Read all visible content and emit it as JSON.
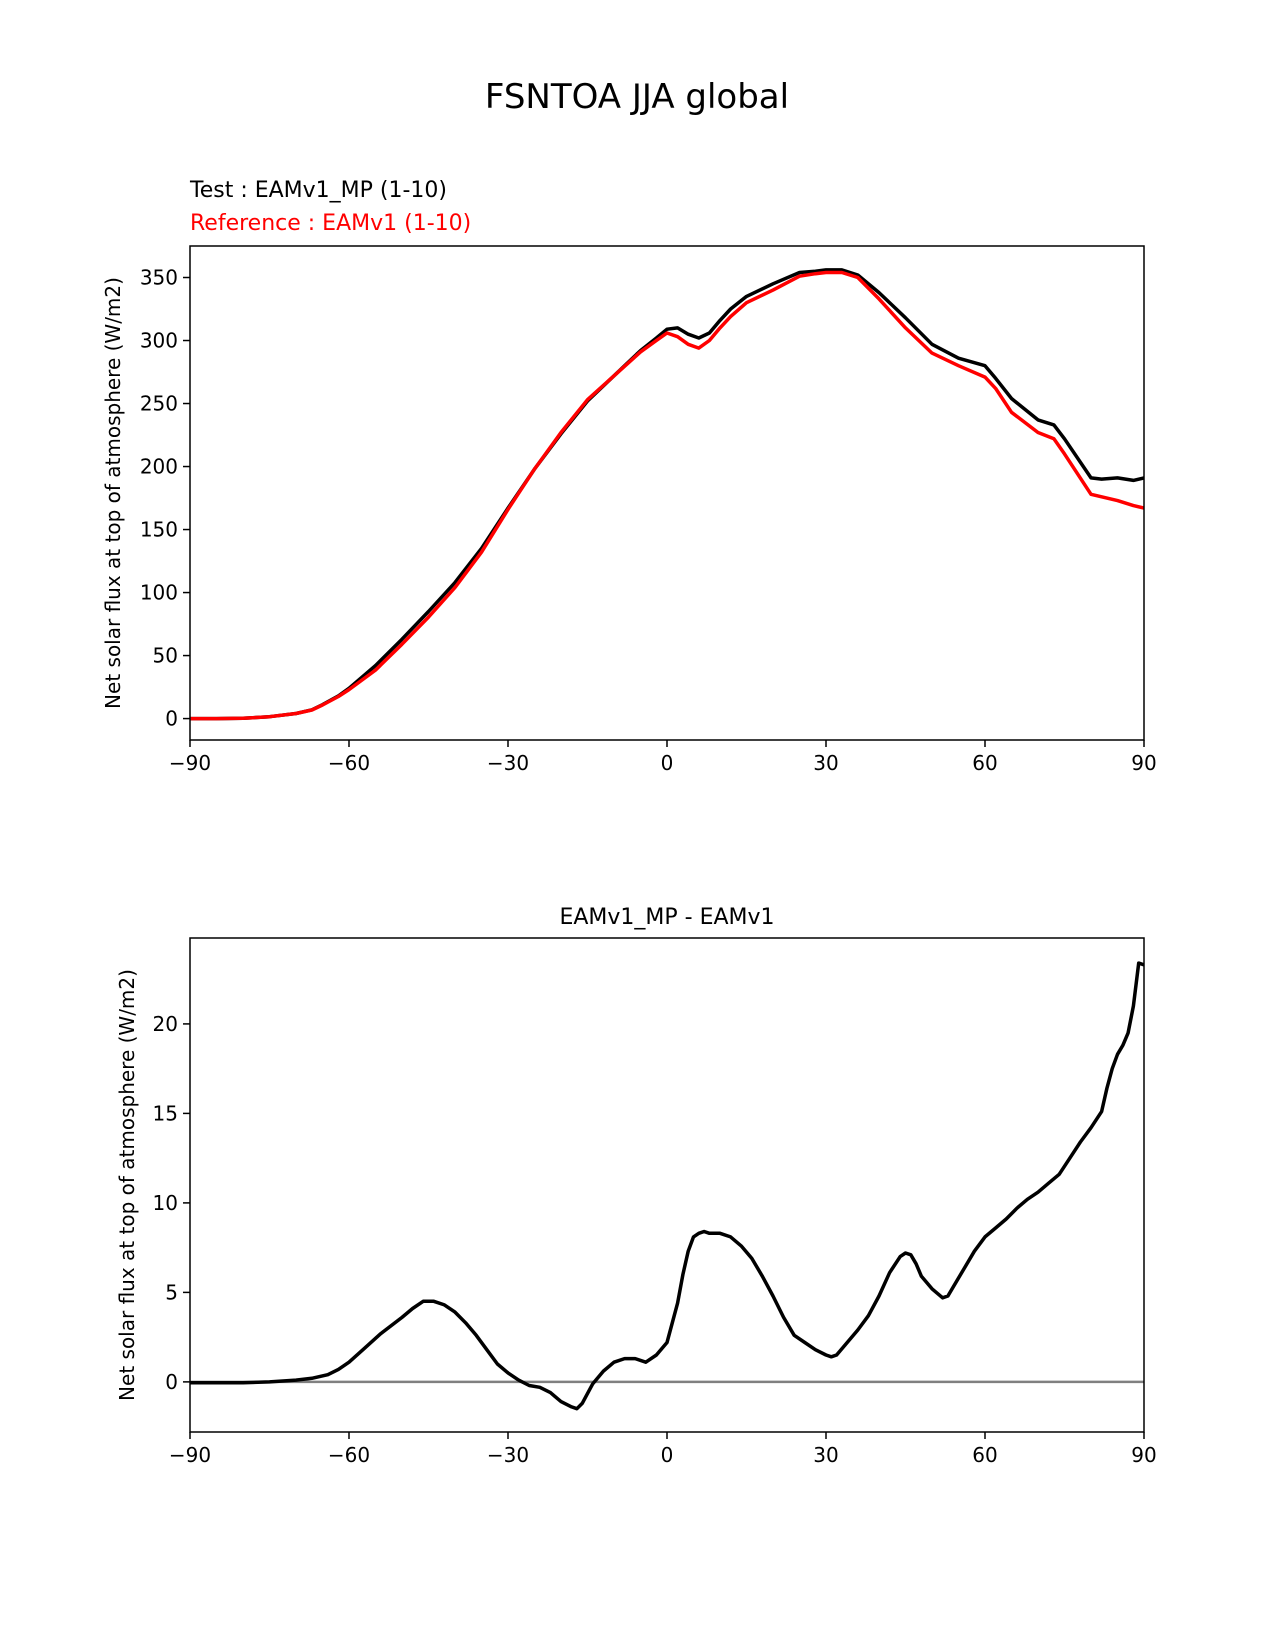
{
  "figure": {
    "title": "FSNTOA JJA global"
  },
  "chart_data": [
    {
      "type": "line",
      "title_test": "Test : EAMv1_MP (1-10)",
      "title_ref": "Reference : EAMv1 (1-10)",
      "xlabel": "",
      "ylabel": "Net solar flux at top of atmosphere (W/m2)",
      "xlim": [
        -90,
        90
      ],
      "ylim": [
        -17,
        375
      ],
      "xticks": [
        -90,
        -60,
        -30,
        0,
        30,
        60,
        90
      ],
      "xtick_labels": [
        "−90",
        "−60",
        "−30",
        "0",
        "30",
        "60",
        "90"
      ],
      "yticks": [
        0,
        50,
        100,
        150,
        200,
        250,
        300,
        350
      ],
      "ytick_labels": [
        "0",
        "50",
        "100",
        "150",
        "200",
        "250",
        "300",
        "350"
      ],
      "series": [
        {
          "name": "Test : EAMv1_MP (1-10)",
          "color": "#000000",
          "x": [
            -90,
            -85,
            -80,
            -75,
            -70,
            -67,
            -65,
            -62,
            -60,
            -55,
            -50,
            -45,
            -40,
            -35,
            -30,
            -25,
            -20,
            -15,
            -10,
            -5,
            -2,
            0,
            2,
            4,
            6,
            8,
            10,
            12,
            15,
            20,
            25,
            28,
            30,
            33,
            36,
            40,
            45,
            50,
            55,
            60,
            62,
            65,
            70,
            73,
            75,
            80,
            82,
            85,
            88,
            90
          ],
          "y": [
            0,
            0,
            0.2,
            1.5,
            4,
            7,
            11,
            18,
            24,
            42,
            63,
            85,
            108,
            135,
            167,
            198,
            226,
            252,
            272,
            292,
            302,
            309,
            310,
            305,
            302,
            306,
            316,
            325,
            335,
            345,
            354,
            355,
            356,
            356,
            352,
            338,
            318,
            297,
            286,
            280,
            270,
            254,
            237,
            233,
            222,
            191,
            190,
            191,
            189,
            191
          ]
        },
        {
          "name": "Reference : EAMv1 (1-10)",
          "color": "#ff0000",
          "x": [
            -90,
            -85,
            -80,
            -75,
            -70,
            -67,
            -65,
            -62,
            -60,
            -55,
            -50,
            -45,
            -40,
            -35,
            -30,
            -25,
            -20,
            -15,
            -10,
            -5,
            -2,
            0,
            2,
            4,
            6,
            8,
            10,
            12,
            15,
            20,
            25,
            28,
            30,
            33,
            36,
            40,
            45,
            50,
            55,
            60,
            62,
            65,
            70,
            73,
            75,
            80,
            82,
            85,
            88,
            90
          ],
          "y": [
            0,
            0,
            0.2,
            1.5,
            4,
            6.8,
            10.8,
            17.5,
            23,
            38.5,
            59,
            80.5,
            104,
            132,
            166,
            198,
            227,
            253,
            272,
            291,
            300,
            306,
            303,
            297,
            294,
            300,
            310,
            319,
            330,
            340,
            351,
            353,
            354,
            354,
            350,
            333,
            310,
            290,
            280,
            271,
            262,
            243,
            227,
            222,
            210,
            178,
            176,
            173,
            169,
            167
          ]
        }
      ]
    },
    {
      "type": "line",
      "title": "EAMv1_MP - EAMv1",
      "xlabel": "",
      "ylabel": "Net solar flux at top of atmosphere (W/m2)",
      "xlim": [
        -90,
        90
      ],
      "ylim": [
        -2.8,
        24.8
      ],
      "xticks": [
        -90,
        -60,
        -30,
        0,
        30,
        60,
        90
      ],
      "xtick_labels": [
        "−90",
        "−60",
        "−30",
        "0",
        "30",
        "60",
        "90"
      ],
      "yticks": [
        0,
        5,
        10,
        15,
        20
      ],
      "ytick_labels": [
        "0",
        "5",
        "10",
        "15",
        "20"
      ],
      "zero_line_color": "#808080",
      "series": [
        {
          "name": "EAMv1_MP - EAMv1",
          "color": "#000000",
          "x": [
            -90,
            -80,
            -75,
            -70,
            -67,
            -64,
            -62,
            -60,
            -57,
            -54,
            -50,
            -48,
            -46,
            -44,
            -42,
            -40,
            -38,
            -36,
            -34,
            -32,
            -30,
            -28,
            -26,
            -24,
            -22,
            -20,
            -18,
            -17,
            -16,
            -14,
            -12,
            -10,
            -8,
            -6,
            -4,
            -2,
            0,
            2,
            3,
            4,
            5,
            6,
            7,
            8,
            10,
            12,
            14,
            16,
            18,
            20,
            22,
            24,
            26,
            28,
            30,
            31,
            32,
            34,
            36,
            38,
            40,
            42,
            44,
            45,
            46,
            47,
            48,
            50,
            52,
            53,
            54,
            56,
            58,
            60,
            62,
            64,
            66,
            68,
            70,
            72,
            74,
            76,
            78,
            80,
            82,
            83,
            84,
            85,
            86,
            87,
            88,
            89,
            90
          ],
          "y": [
            -0.05,
            -0.05,
            0,
            0.1,
            0.2,
            0.4,
            0.7,
            1.1,
            1.9,
            2.7,
            3.6,
            4.1,
            4.5,
            4.5,
            4.3,
            3.9,
            3.3,
            2.6,
            1.8,
            1.0,
            0.5,
            0.1,
            -0.2,
            -0.3,
            -0.6,
            -1.1,
            -1.4,
            -1.5,
            -1.2,
            -0.1,
            0.6,
            1.1,
            1.3,
            1.3,
            1.1,
            1.5,
            2.2,
            4.4,
            6.0,
            7.3,
            8.1,
            8.3,
            8.4,
            8.3,
            8.3,
            8.1,
            7.6,
            6.9,
            5.9,
            4.8,
            3.6,
            2.6,
            2.2,
            1.8,
            1.5,
            1.4,
            1.5,
            2.2,
            2.9,
            3.7,
            4.8,
            6.1,
            7.0,
            7.2,
            7.1,
            6.6,
            5.9,
            5.2,
            4.7,
            4.8,
            5.3,
            6.3,
            7.3,
            8.1,
            8.6,
            9.1,
            9.7,
            10.2,
            10.6,
            11.1,
            11.6,
            12.5,
            13.4,
            14.2,
            15.1,
            16.4,
            17.5,
            18.3,
            18.8,
            19.5,
            21.0,
            23.4,
            23.3
          ]
        }
      ]
    }
  ]
}
